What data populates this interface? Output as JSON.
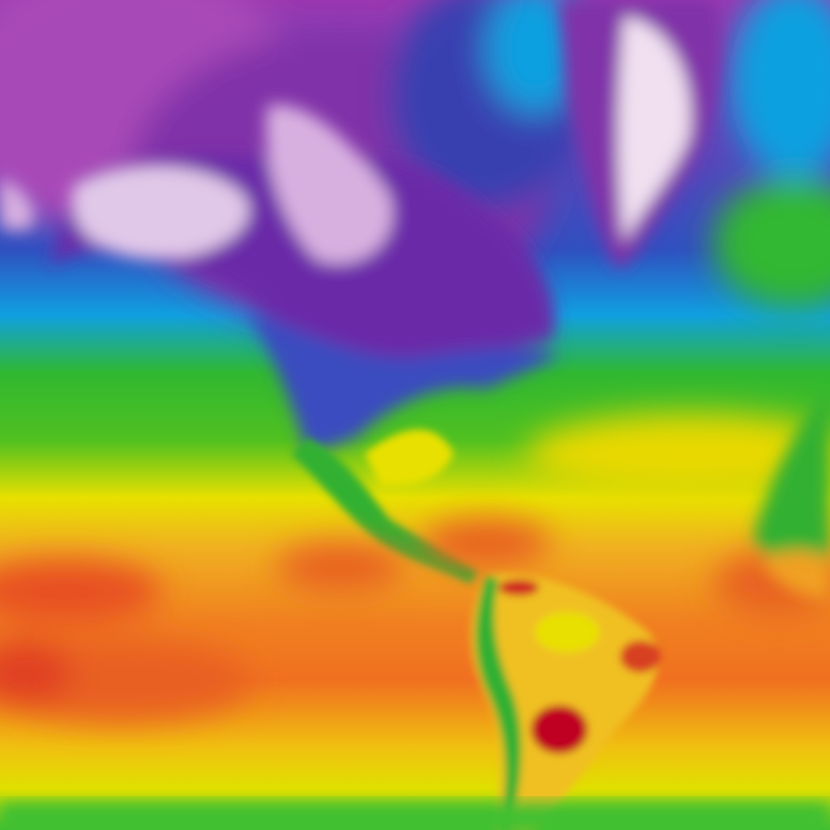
{
  "map": {
    "colors": {
      "coldest": "#f0d8f0",
      "very_cold": "#a040b0",
      "cold": "#5a2aa0",
      "cool": "#3050c0",
      "chilly": "#10a0e0",
      "mild": "#30b830",
      "warm": "#e8e000",
      "hot": "#f0a020",
      "very_hot": "#e85020",
      "hottest": "#c00020"
    }
  }
}
